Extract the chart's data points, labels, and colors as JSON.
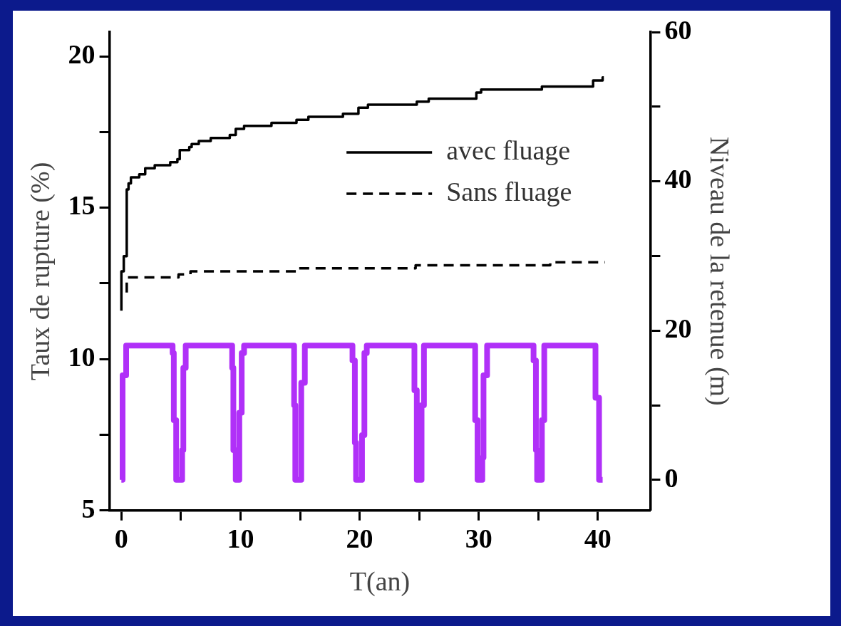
{
  "chart_data": {
    "type": "step",
    "xlabel": "T(an)",
    "ylabel": "Taux de rupture (%)",
    "y2label": "Niveau de la retenue (m)",
    "xlim": [
      -1,
      44.4
    ],
    "xticks": [
      0,
      {
        "value": 5,
        "label": null
      },
      10,
      {
        "value": 15,
        "label": null
      },
      20,
      {
        "value": 25,
        "label": null
      },
      30,
      {
        "value": 35,
        "label": null
      },
      40
    ],
    "ylim": [
      5,
      20.8
    ],
    "yticks": [
      5,
      {
        "value": 7.5,
        "label": null
      },
      10,
      {
        "value": 12.5,
        "label": null
      },
      15,
      {
        "value": 17.5,
        "label": null
      },
      20
    ],
    "y2lim": [
      -4.1,
      60
    ],
    "y2ticks": [
      0,
      {
        "value": 10,
        "label": null
      },
      20,
      {
        "value": 30,
        "label": null
      },
      40,
      {
        "value": 50,
        "label": null
      },
      60
    ],
    "grid": false,
    "legend": "top right",
    "marker": "none",
    "series": [
      {
        "name": "avec fluage",
        "type": "step",
        "color": "#000000",
        "line_style": "solid",
        "x": [
          0,
          0,
          0.2,
          0.45,
          0.6,
          0.8,
          1.5,
          2.0,
          2.8,
          4.1,
          4.7,
          4.9,
          5.7,
          5.9,
          6.5,
          7.5,
          9.1,
          9.6,
          10.3,
          12.6,
          14.7,
          15.7,
          18.6,
          19.9,
          20.7,
          24.8,
          25.8,
          29.8,
          30.2,
          35.3,
          39.6,
          40.4,
          40.5
        ],
        "values": [
          11.6,
          12.9,
          13.4,
          15.6,
          15.8,
          16.0,
          16.1,
          16.3,
          16.4,
          16.5,
          16.6,
          16.9,
          17.0,
          17.1,
          17.2,
          17.3,
          17.4,
          17.6,
          17.7,
          17.8,
          17.9,
          18.0,
          18.1,
          18.3,
          18.4,
          18.5,
          18.6,
          18.8,
          18.9,
          19.0,
          19.2,
          19.3,
          19.3
        ]
      },
      {
        "name": "Sans fluage",
        "type": "step",
        "color": "#000000",
        "line_style": "dashed",
        "x": [
          0.45,
          0.45,
          4.8,
          5.8,
          14.7,
          24.7,
          36,
          40.6
        ],
        "values": [
          12.2,
          12.7,
          12.8,
          12.9,
          13.0,
          13.1,
          13.2,
          13.2
        ]
      },
      {
        "type": "step",
        "axis": "y2",
        "color": "#b030f8",
        "line_style": "solid",
        "x": [
          0,
          0.1,
          0.4,
          4.3,
          4.4,
          4.6,
          5.1,
          5.2,
          5.4,
          9.3,
          9.4,
          9.6,
          9.9,
          10.1,
          10.3,
          14.5,
          14.6,
          15.1,
          15.4,
          19.4,
          19.6,
          19.7,
          20.2,
          20.4,
          20.6,
          24.6,
          24.8,
          25.2,
          25.4,
          29.7,
          29.9,
          30.3,
          30.4,
          30.7,
          34.6,
          34.8,
          34.9,
          35.3,
          35.5,
          39.8,
          40.1,
          40.4
        ],
        "values": [
          0,
          14,
          18,
          17,
          8,
          0,
          4,
          15,
          18,
          15,
          4,
          0,
          9,
          17,
          18,
          10,
          0,
          13,
          18,
          16,
          5,
          0,
          6,
          17,
          18,
          12,
          0,
          10,
          18,
          8,
          0,
          3,
          14,
          18,
          16,
          4,
          0,
          8,
          18,
          11,
          0,
          0
        ]
      }
    ]
  }
}
